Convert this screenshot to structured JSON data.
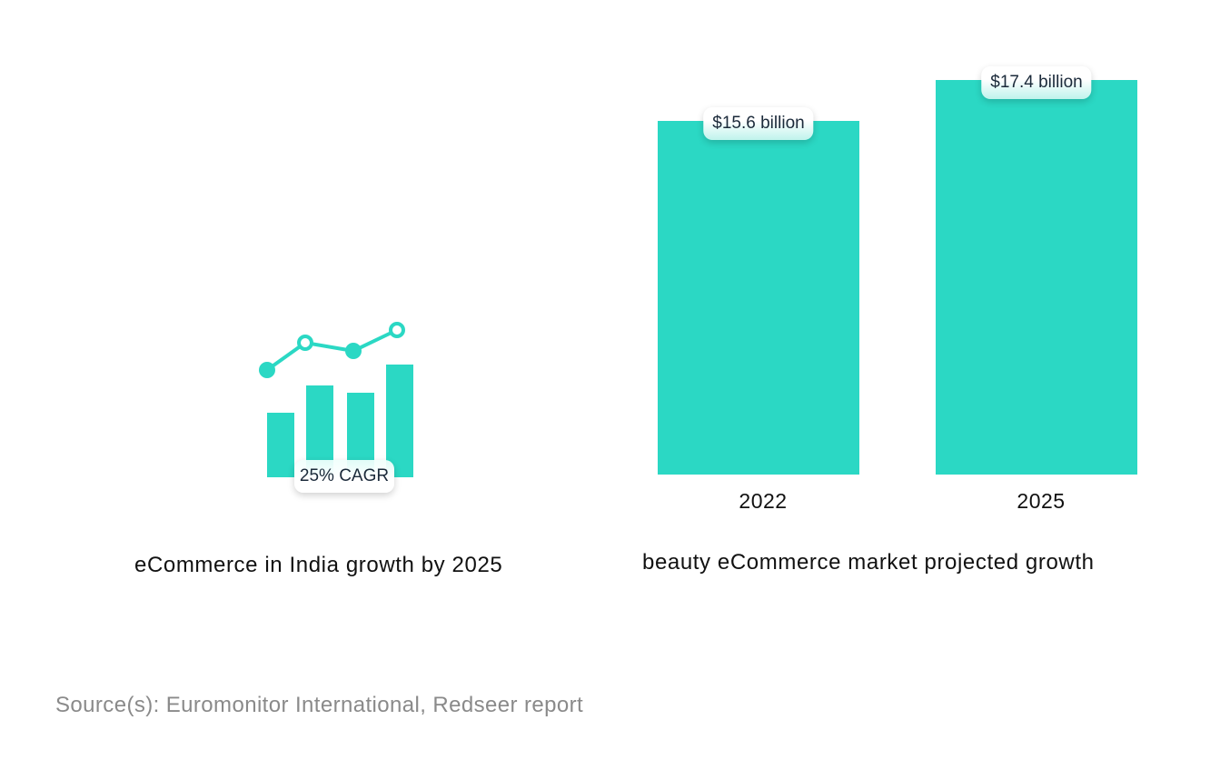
{
  "left_panel": {
    "badge": "25% CAGR",
    "caption": "eCommerce in India growth by 2025",
    "icon": "bar-and-line-growth-icon"
  },
  "chart_data": {
    "type": "bar",
    "categories": [
      "2022",
      "2025"
    ],
    "values": [
      15.6,
      17.4
    ],
    "data_labels": [
      "$15.6 billion",
      "$17.4 billion"
    ],
    "unit": "USD billion",
    "title": "beauty eCommerce market projected growth",
    "xlabel": "",
    "ylabel": "",
    "ylim": [
      0,
      17.4
    ],
    "grid": false,
    "legend": "none",
    "bar_color": "#2bd8c4"
  },
  "source": "Source(s): Euromonitor International, Redseer report",
  "colors": {
    "accent": "#2bd8c4",
    "text": "#111111",
    "source_text": "#8a8a8a"
  }
}
